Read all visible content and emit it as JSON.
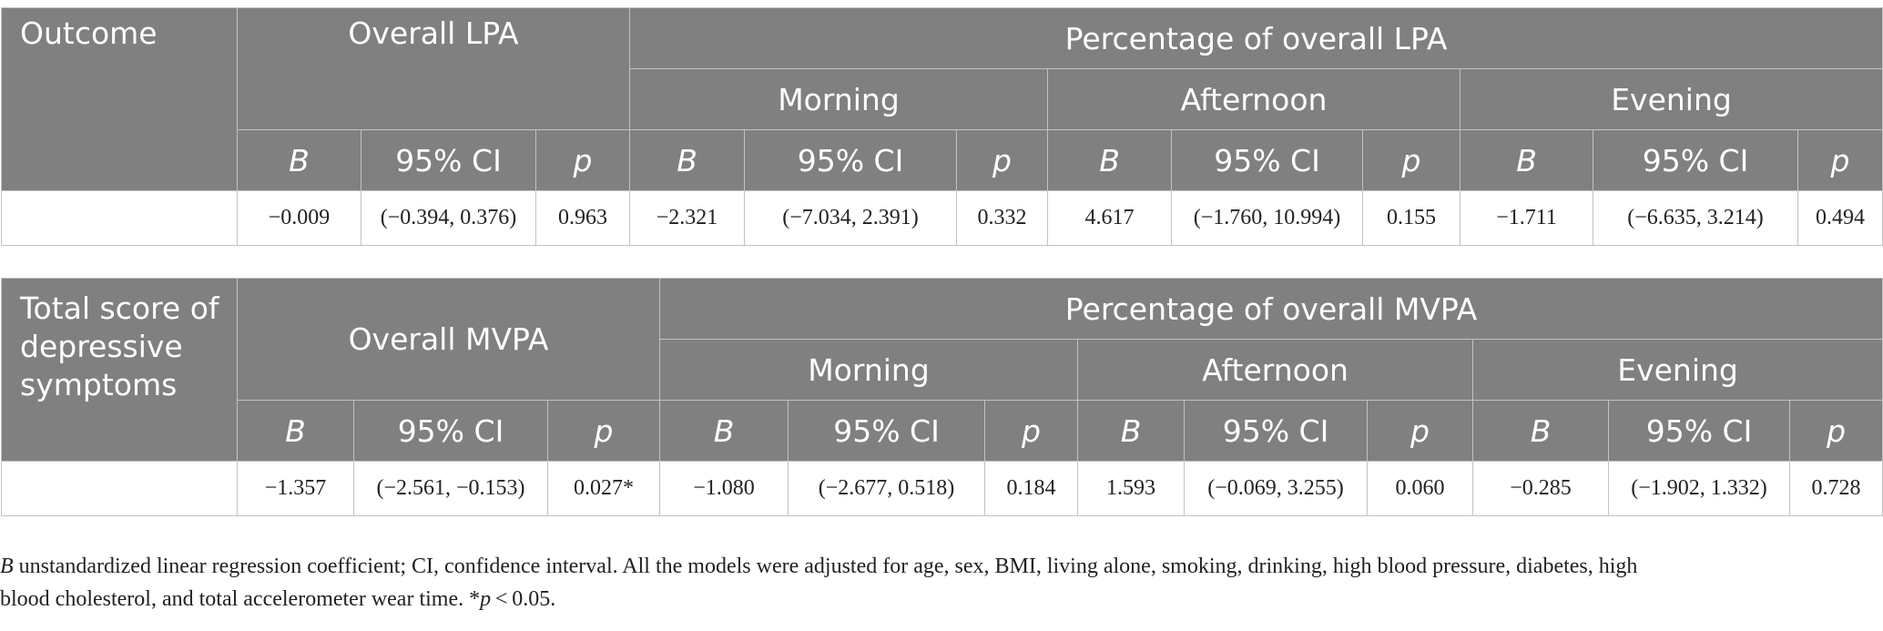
{
  "colors": {
    "header_bg": "#808080",
    "header_text": "#ffffff",
    "border": "#c2c2c2",
    "body_text": "#222222"
  },
  "table1": {
    "outcome_label": "Outcome",
    "overall_label": "Overall LPA",
    "percentage_label": "Percentage of overall LPA",
    "periods": [
      "Morning",
      "Afternoon",
      "Evening"
    ],
    "col_b": "B",
    "col_ci": "95% CI",
    "col_p": "p",
    "row": {
      "label": "",
      "values": [
        "−0.009",
        "(−0.394, 0.376)",
        "0.963",
        "−2.321",
        "(−7.034, 2.391)",
        "0.332",
        "4.617",
        "(−1.760, 10.994)",
        "0.155",
        "−1.711",
        "(−6.635, 3.214)",
        "0.494"
      ]
    }
  },
  "table2": {
    "outcome_label": "Total score of depressive symptoms",
    "overall_label": "Overall MVPA",
    "percentage_label": "Percentage of overall MVPA",
    "periods": [
      "Morning",
      "Afternoon",
      "Evening"
    ],
    "col_b": "B",
    "col_ci": "95% CI",
    "col_p": "p",
    "row": {
      "label": "",
      "values": [
        "−1.357",
        "(−2.561, −0.153)",
        "0.027*",
        "−1.080",
        "(−2.677, 0.518)",
        "0.184",
        "1.593",
        "(−0.069, 3.255)",
        "0.060",
        "−0.285",
        "(−1.902, 1.332)",
        "0.728"
      ]
    }
  },
  "footnote": {
    "b_symbol": "B",
    "line1_rest": " unstandardized linear regression coefficient; CI, confidence interval. All the models were adjusted for age, sex, BMI, living alone, smoking, drinking, high blood pressure, diabetes, high",
    "line2_start": "blood cholesterol, and total accelerometer wear time. *",
    "p_symbol": "p",
    "line2_end": " < 0.05."
  }
}
